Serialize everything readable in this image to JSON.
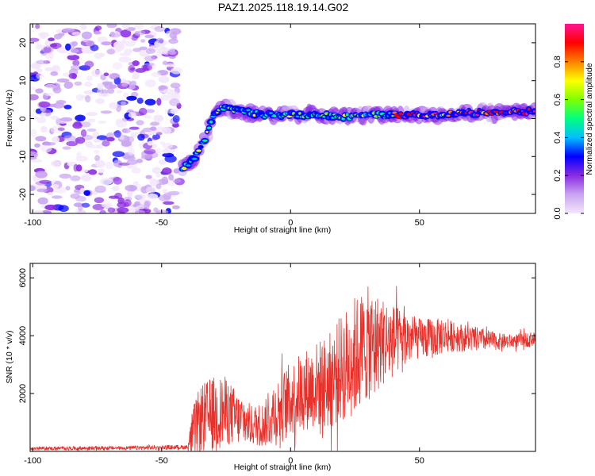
{
  "figure": {
    "title": "PAZ1.2025.118.19.14.G02"
  },
  "chart_data": [
    {
      "type": "heatmap",
      "panel": "spectrogram",
      "xlabel": "Height of straight line (km)",
      "ylabel": "Frequency (Hz)",
      "xlim": [
        -101,
        95
      ],
      "ylim": [
        -25,
        25
      ],
      "xticks": [
        -100,
        -50,
        0,
        50
      ],
      "yticks": [
        -20,
        -10,
        0,
        10,
        20
      ],
      "colorbar": {
        "label": "Normalized spectral amplitude",
        "range": [
          0,
          1
        ],
        "ticks": [
          "0.0",
          "0.2",
          "0.4",
          "0.6",
          "0.8"
        ],
        "colormap": "rainbow",
        "colors": [
          "#f3e6fb",
          "#c9a4f2",
          "#8a2be2",
          "#0000ff",
          "#00bfff",
          "#00ff80",
          "#80ff00",
          "#ffff00",
          "#ff8000",
          "#ff0000",
          "#ff1493"
        ]
      },
      "ridge": {
        "description_points": [
          {
            "x": -42,
            "y": -13
          },
          {
            "x": -38,
            "y": -11
          },
          {
            "x": -33,
            "y": -5
          },
          {
            "x": -30,
            "y": 1
          },
          {
            "x": -26,
            "y": 3
          },
          {
            "x": -20,
            "y": 2
          },
          {
            "x": -10,
            "y": 1
          },
          {
            "x": 0,
            "y": 1
          },
          {
            "x": 10,
            "y": 1
          },
          {
            "x": 20,
            "y": 0.5
          },
          {
            "x": 30,
            "y": 1
          },
          {
            "x": 40,
            "y": 1
          },
          {
            "x": 50,
            "y": 1
          },
          {
            "x": 60,
            "y": 1
          },
          {
            "x": 70,
            "y": 1.5
          },
          {
            "x": 80,
            "y": 1.5
          },
          {
            "x": 95,
            "y": 2
          }
        ],
        "noise_region_x": [
          -101,
          -43
        ]
      }
    },
    {
      "type": "line",
      "panel": "snr",
      "xlabel": "Height of straight line (km)",
      "ylabel": "SNR (10 * v/v)",
      "xlim": [
        -101,
        95
      ],
      "ylim": [
        0,
        6500
      ],
      "xticks": [
        -100,
        -50,
        0,
        50
      ],
      "yticks": [
        2000,
        4000,
        6000
      ],
      "color": "#e8302a",
      "envelope": {
        "x": [
          -101,
          -60,
          -40,
          -38,
          -35,
          -30,
          -25,
          -20,
          -15,
          -10,
          -5,
          0,
          5,
          10,
          15,
          20,
          25,
          30,
          35,
          40,
          45,
          50,
          55,
          60,
          65,
          70,
          75,
          80,
          85,
          90,
          95
        ],
        "mean": [
          100,
          120,
          150,
          600,
          1100,
          1300,
          1400,
          1100,
          900,
          950,
          1400,
          1800,
          2100,
          2300,
          2400,
          2900,
          3300,
          3700,
          3800,
          3800,
          3950,
          3900,
          3900,
          4000,
          3950,
          3900,
          3850,
          3800,
          3800,
          3850,
          3900
        ],
        "amp": [
          60,
          70,
          80,
          900,
          1200,
          1300,
          1200,
          900,
          700,
          800,
          1200,
          1300,
          1400,
          1500,
          1700,
          1900,
          2100,
          2000,
          1600,
          1300,
          900,
          700,
          700,
          600,
          500,
          450,
          400,
          300,
          250,
          250,
          250
        ]
      }
    }
  ]
}
